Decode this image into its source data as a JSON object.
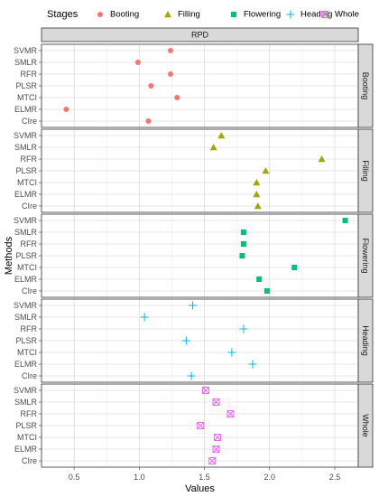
{
  "chart_data": {
    "type": "scatter",
    "top_strip": "RPD",
    "xlabel": "Values",
    "ylabel": "Methods",
    "xlim": [
      0.25,
      2.68
    ],
    "xticks": [
      0.5,
      1.0,
      1.5,
      2.0,
      2.5
    ],
    "xtick_labels": [
      "0.5",
      "1.0",
      "1.5",
      "2.0",
      "2.5"
    ],
    "methods": [
      "SVMR",
      "SMLR",
      "RFR",
      "PLSR",
      "MTCI",
      "ELMR",
      "CIre"
    ],
    "grid": true,
    "legend": {
      "title": "Stages",
      "position": "top",
      "entries": [
        {
          "name": "Booting",
          "color": "#F8766D",
          "shape": "circle-icon"
        },
        {
          "name": "Filling",
          "color": "#A3A500",
          "shape": "triangle-icon"
        },
        {
          "name": "Flowering",
          "color": "#00BF7D",
          "shape": "square-icon"
        },
        {
          "name": "Heading",
          "color": "#00B0F6",
          "shape": "plus-icon"
        },
        {
          "name": "Whole",
          "color": "#E76BF3",
          "shape": "boxed-x-icon"
        }
      ]
    },
    "panels": [
      {
        "name": "Booting",
        "color": "#F8766D",
        "shape": "circle",
        "values": [
          1.24,
          0.99,
          1.24,
          1.09,
          1.29,
          0.44,
          1.07
        ]
      },
      {
        "name": "Filling",
        "color": "#A3A500",
        "shape": "triangle",
        "values": [
          1.63,
          1.57,
          2.4,
          1.97,
          1.9,
          1.9,
          1.91
        ]
      },
      {
        "name": "Flowering",
        "color": "#00BF7D",
        "shape": "square",
        "values": [
          2.58,
          1.8,
          1.8,
          1.79,
          2.19,
          1.92,
          1.98
        ]
      },
      {
        "name": "Heading",
        "color": "#00B0F6",
        "shape": "plus",
        "values": [
          1.41,
          1.04,
          1.8,
          1.36,
          1.71,
          1.87,
          1.4
        ]
      },
      {
        "name": "Whole",
        "color": "#E76BF3",
        "shape": "boxx",
        "values": [
          1.51,
          1.59,
          1.7,
          1.47,
          1.6,
          1.59,
          1.56
        ]
      }
    ]
  }
}
